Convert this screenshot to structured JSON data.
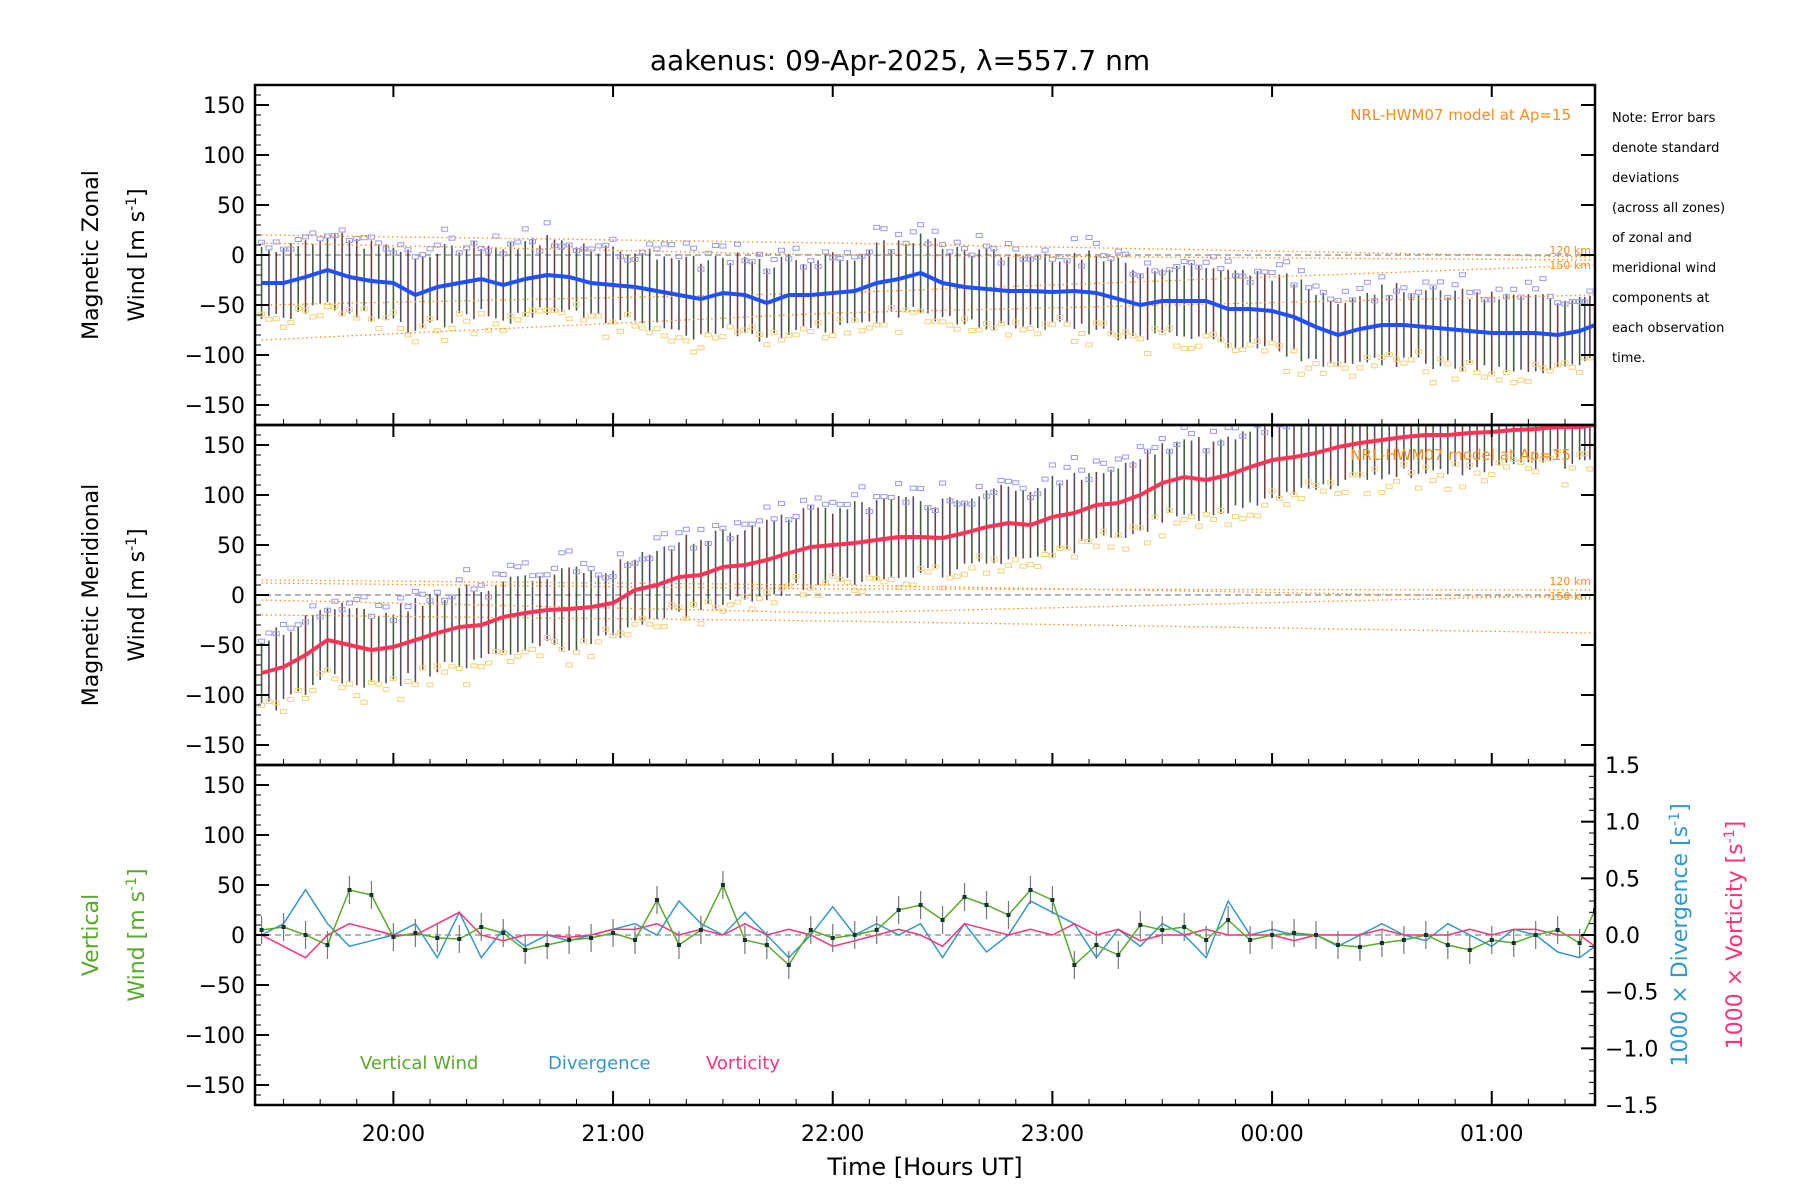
{
  "chart_data": [
    {
      "type": "line",
      "panel": "zonal",
      "title": "aakenus: 09-Apr-2025, λ=557.7 nm",
      "ylabel_line1": "Magnetic Zonal",
      "ylabel_line2": "Wind [m s",
      "ylabel_sup": "-1",
      "ylabel_close": "]",
      "xlim": [
        19.37,
        25.47
      ],
      "ylim": [
        -170,
        170
      ],
      "yticks": [
        150,
        100,
        50,
        0,
        -50,
        -100,
        -150
      ],
      "model_label": "NRL-HWM07 model at Ap=15",
      "km_labels": [
        "120 km",
        "150 km"
      ],
      "series": [
        {
          "name": "mean zonal wind",
          "color": "#1f4fff",
          "x": [
            19.4,
            19.5,
            19.6,
            19.7,
            19.8,
            19.9,
            20.0,
            20.1,
            20.2,
            20.3,
            20.4,
            20.5,
            20.6,
            20.7,
            20.8,
            20.9,
            21.0,
            21.1,
            21.2,
            21.3,
            21.4,
            21.5,
            21.6,
            21.7,
            21.8,
            21.9,
            22.0,
            22.1,
            22.2,
            22.3,
            22.4,
            22.5,
            22.6,
            22.7,
            22.8,
            22.9,
            23.0,
            23.1,
            23.2,
            23.3,
            23.4,
            23.5,
            23.6,
            23.7,
            23.8,
            23.9,
            24.0,
            24.1,
            24.2,
            24.3,
            24.4,
            24.5,
            24.6,
            24.7,
            24.8,
            24.9,
            25.0,
            25.1,
            25.2,
            25.3,
            25.4,
            25.47
          ],
          "values": [
            -28,
            -28,
            -22,
            -15,
            -22,
            -26,
            -28,
            -40,
            -32,
            -28,
            -24,
            -30,
            -24,
            -20,
            -22,
            -28,
            -30,
            -32,
            -36,
            -40,
            -44,
            -38,
            -40,
            -48,
            -40,
            -40,
            -38,
            -36,
            -28,
            -24,
            -18,
            -28,
            -32,
            -34,
            -36,
            -36,
            -37,
            -36,
            -38,
            -44,
            -50,
            -46,
            -46,
            -46,
            -54,
            -54,
            -56,
            -62,
            -72,
            -80,
            -74,
            -70,
            -70,
            -72,
            -74,
            -76,
            -78,
            -78,
            -78,
            -80,
            -76,
            -70
          ]
        },
        {
          "name": "NRL-HWM07 model",
          "color": "#ff8c1a",
          "style": "dotted",
          "x": [
            19.4,
            25.47
          ],
          "values": [
            -28,
            -5
          ]
        }
      ]
    },
    {
      "type": "line",
      "panel": "meridional",
      "ylabel_line1": "Magnetic Meridional",
      "ylabel_line2": "Wind [m s",
      "ylabel_sup": "-1",
      "ylabel_close": "]",
      "xlim": [
        19.37,
        25.47
      ],
      "ylim": [
        -170,
        170
      ],
      "yticks": [
        150,
        100,
        50,
        0,
        -50,
        -100,
        -150
      ],
      "model_label": "NRL-HWM07 model at Ap=15",
      "km_labels": [
        "120 km",
        "150 km"
      ],
      "series": [
        {
          "name": "mean meridional wind",
          "color": "#ff3355",
          "x": [
            19.4,
            19.5,
            19.6,
            19.7,
            19.8,
            19.9,
            20.0,
            20.1,
            20.2,
            20.3,
            20.4,
            20.5,
            20.6,
            20.7,
            20.8,
            20.9,
            21.0,
            21.1,
            21.2,
            21.3,
            21.4,
            21.5,
            21.6,
            21.7,
            21.8,
            21.9,
            22.0,
            22.1,
            22.2,
            22.3,
            22.4,
            22.5,
            22.6,
            22.7,
            22.8,
            22.9,
            23.0,
            23.1,
            23.2,
            23.3,
            23.4,
            23.5,
            23.6,
            23.7,
            23.8,
            23.9,
            24.0,
            24.1,
            24.2,
            24.3,
            24.4,
            24.5,
            24.6,
            24.7,
            24.8,
            24.9,
            25.0,
            25.1,
            25.2,
            25.3,
            25.4,
            25.47
          ],
          "values": [
            -78,
            -72,
            -60,
            -45,
            -50,
            -55,
            -52,
            -45,
            -38,
            -32,
            -30,
            -22,
            -18,
            -15,
            -14,
            -12,
            -8,
            5,
            10,
            18,
            20,
            28,
            30,
            35,
            42,
            48,
            50,
            52,
            55,
            58,
            58,
            57,
            62,
            68,
            72,
            70,
            78,
            82,
            90,
            92,
            100,
            112,
            118,
            115,
            120,
            128,
            135,
            138,
            142,
            148,
            152,
            155,
            158,
            160,
            160,
            162,
            163,
            165,
            166,
            168,
            168,
            170
          ]
        }
      ]
    },
    {
      "type": "line",
      "panel": "vertical",
      "ylabel_line1": "Vertical",
      "ylabel_line2": "Wind [m s",
      "ylabel_sup": "-1",
      "ylabel_close": "]",
      "y2label_div": "1000 × Divergence [s",
      "y2label_vor": "1000 × Vorticity [s",
      "y2label_sup": "-1",
      "y2label_close": "]",
      "xlabel": "Time [Hours UT]",
      "xlim": [
        19.37,
        25.47
      ],
      "ylim": [
        -170,
        170
      ],
      "y2lim": [
        -1.5,
        1.5
      ],
      "yticks": [
        150,
        100,
        50,
        0,
        -50,
        -100,
        -150
      ],
      "y2ticks": [
        "1.5",
        "1.0",
        "0.5",
        "0.0",
        "−0.5",
        "−1.0",
        "−1.5"
      ],
      "xticks": [
        {
          "v": 20,
          "label": "20:00"
        },
        {
          "v": 21,
          "label": "21:00"
        },
        {
          "v": 22,
          "label": "22:00"
        },
        {
          "v": 23,
          "label": "23:00"
        },
        {
          "v": 24,
          "label": "00:00"
        },
        {
          "v": 25,
          "label": "01:00"
        }
      ],
      "legend": [
        "Vertical Wind",
        "Divergence",
        "Vorticity"
      ],
      "series": [
        {
          "name": "Vertical Wind",
          "color": "#5aaa2a",
          "x": [
            19.4,
            19.5,
            19.6,
            19.7,
            19.8,
            19.9,
            20.0,
            20.1,
            20.2,
            20.3,
            20.4,
            20.5,
            20.6,
            20.7,
            20.8,
            20.9,
            21.0,
            21.1,
            21.2,
            21.3,
            21.4,
            21.5,
            21.6,
            21.7,
            21.8,
            21.9,
            22.0,
            22.1,
            22.2,
            22.3,
            22.4,
            22.5,
            22.6,
            22.7,
            22.8,
            22.9,
            23.0,
            23.1,
            23.2,
            23.3,
            23.4,
            23.5,
            23.6,
            23.7,
            23.8,
            23.9,
            24.0,
            24.1,
            24.2,
            24.3,
            24.4,
            24.5,
            24.6,
            24.7,
            24.8,
            24.9,
            25.0,
            25.1,
            25.2,
            25.3,
            25.4,
            25.47
          ],
          "values": [
            5,
            8,
            0,
            -10,
            45,
            40,
            -2,
            2,
            -3,
            -4,
            8,
            2,
            -15,
            -10,
            -5,
            -3,
            2,
            -5,
            35,
            -10,
            5,
            50,
            -5,
            -10,
            -30,
            5,
            -3,
            0,
            5,
            25,
            30,
            15,
            38,
            30,
            20,
            45,
            35,
            -30,
            -10,
            -20,
            10,
            5,
            8,
            -5,
            15,
            -5,
            0,
            2,
            0,
            -10,
            -12,
            -8,
            -5,
            0,
            -10,
            -15,
            -5,
            -8,
            0,
            5,
            -8,
            25
          ]
        },
        {
          "name": "Divergence",
          "color": "#3399cc",
          "axis": "right",
          "x": [
            19.4,
            19.5,
            19.6,
            19.7,
            19.8,
            19.9,
            20.0,
            20.1,
            20.2,
            20.3,
            20.4,
            20.5,
            20.6,
            20.7,
            20.8,
            20.9,
            21.0,
            21.1,
            21.2,
            21.3,
            21.4,
            21.5,
            21.6,
            21.7,
            21.8,
            21.9,
            22.0,
            22.1,
            22.2,
            22.3,
            22.4,
            22.5,
            22.6,
            22.7,
            22.8,
            22.9,
            23.0,
            23.1,
            23.2,
            23.3,
            23.4,
            23.5,
            23.6,
            23.7,
            23.8,
            23.9,
            24.0,
            24.1,
            24.2,
            24.3,
            24.4,
            24.5,
            24.6,
            24.7,
            24.8,
            24.9,
            25.0,
            25.1,
            25.2,
            25.3,
            25.4,
            25.47
          ],
          "values": [
            0.0,
            0.1,
            0.4,
            0.1,
            -0.1,
            -0.05,
            0.0,
            0.1,
            -0.2,
            0.2,
            -0.2,
            0.05,
            -0.1,
            0.0,
            -0.05,
            0.0,
            0.05,
            0.1,
            0.0,
            0.3,
            0.1,
            0.0,
            0.2,
            0.0,
            -0.2,
            0.0,
            0.25,
            0.0,
            0.1,
            0.0,
            0.1,
            -0.2,
            0.1,
            -0.15,
            0.0,
            0.3,
            0.2,
            0.1,
            -0.2,
            0.05,
            -0.1,
            0.1,
            0.0,
            -0.2,
            0.3,
            0.0,
            0.05,
            0.0,
            0.0,
            -0.1,
            0.0,
            0.1,
            0.0,
            -0.05,
            0.1,
            0.0,
            -0.1,
            0.05,
            0.0,
            -0.15,
            -0.2,
            -0.1
          ]
        },
        {
          "name": "Vorticity",
          "color": "#ff3377",
          "axis": "right",
          "x": [
            19.4,
            19.5,
            19.6,
            19.7,
            19.8,
            19.9,
            20.0,
            20.1,
            20.2,
            20.3,
            20.4,
            20.5,
            20.6,
            20.7,
            20.8,
            20.9,
            21.0,
            21.1,
            21.2,
            21.3,
            21.4,
            21.5,
            21.6,
            21.7,
            21.8,
            21.9,
            22.0,
            22.1,
            22.2,
            22.3,
            22.4,
            22.5,
            22.6,
            22.7,
            22.8,
            22.9,
            23.0,
            23.1,
            23.2,
            23.3,
            23.4,
            23.5,
            23.6,
            23.7,
            23.8,
            23.9,
            24.0,
            24.1,
            24.2,
            24.3,
            24.4,
            24.5,
            24.6,
            24.7,
            24.8,
            24.9,
            25.0,
            25.1,
            25.2,
            25.3,
            25.4,
            25.47
          ],
          "values": [
            0.0,
            -0.1,
            -0.2,
            0.0,
            0.1,
            0.05,
            0.0,
            0.0,
            0.1,
            0.2,
            0.0,
            -0.05,
            0.0,
            0.0,
            -0.02,
            0.0,
            0.05,
            0.05,
            0.1,
            0.0,
            0.05,
            0.0,
            0.1,
            0.0,
            0.05,
            0.0,
            -0.1,
            -0.05,
            0.0,
            0.05,
            0.0,
            -0.1,
            0.1,
            0.05,
            0.0,
            0.05,
            0.0,
            0.1,
            0.0,
            0.05,
            -0.05,
            0.0,
            0.0,
            0.05,
            0.0,
            0.0,
            0.0,
            -0.05,
            0.0,
            0.0,
            0.0,
            0.05,
            0.0,
            0.0,
            0.0,
            0.05,
            0.0,
            0.05,
            0.05,
            0.0,
            0.0,
            -0.1
          ]
        }
      ]
    }
  ],
  "note_lines": [
    "Note: Error bars",
    "denote standard",
    "deviations",
    "(across all zones)",
    "of zonal and",
    "meridional wind",
    "components at",
    "each observation",
    "time."
  ],
  "colors": {
    "axis": "#000000",
    "model": "#ff8c1a",
    "zonal": "#1f4fff",
    "meridional": "#ff3355",
    "vertical": "#5aaa2a",
    "divergence": "#3399cc",
    "vorticity": "#ff3377",
    "scatter_purple": "#9999ee",
    "scatter_yellow": "#f5d27a",
    "zero_line": "#888888"
  }
}
